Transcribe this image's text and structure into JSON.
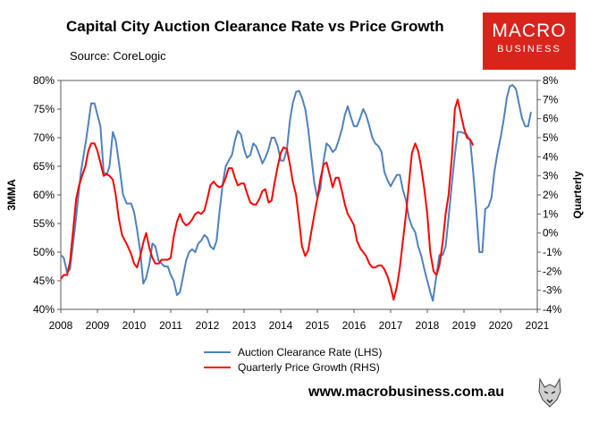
{
  "header": {
    "title": "Capital City Auction Clearance Rate vs Price Growth",
    "subtitle": "Source: CoreLogic"
  },
  "logo": {
    "line1": "MACRO",
    "line2": "BUSINESS"
  },
  "footer": {
    "url": "www.macrobusiness.com.au"
  },
  "colors": {
    "lhs": "#4f81bd",
    "rhs": "#ff0000",
    "logo_bg": "#d9241c"
  },
  "chart_data": {
    "type": "line",
    "title": "Capital City Auction Clearance Rate vs Price Growth",
    "subtitle": "Source: CoreLogic",
    "ylabel_left": "3MMA",
    "ylabel_right": "Quarterly",
    "xlim": [
      2008,
      2021
    ],
    "ylim_left": [
      40,
      80
    ],
    "ylim_right": [
      -4,
      8
    ],
    "grid": false,
    "legend_position": "bottom-center",
    "x_ticks": [
      2008,
      2009,
      2010,
      2011,
      2012,
      2013,
      2014,
      2015,
      2016,
      2017,
      2018,
      2019,
      2020,
      2021
    ],
    "x_tick_labels": [
      "2008",
      "2009",
      "2010",
      "2011",
      "2012",
      "2013",
      "2014",
      "2015",
      "2016",
      "2017",
      "2018",
      "2019",
      "2020",
      "2021"
    ],
    "y_left_ticks": [
      40,
      45,
      50,
      55,
      60,
      65,
      70,
      75,
      80
    ],
    "y_left_tick_labels": [
      "40%",
      "45%",
      "50%",
      "55%",
      "60%",
      "65%",
      "70%",
      "75%",
      "80%"
    ],
    "y_right_ticks": [
      -4,
      -3,
      -2,
      -1,
      0,
      1,
      2,
      3,
      4,
      5,
      6,
      7,
      8
    ],
    "y_right_tick_labels": [
      "-4%",
      "-3%",
      "-2%",
      "-1%",
      "0%",
      "1%",
      "2%",
      "3%",
      "4%",
      "5%",
      "6%",
      "7%",
      "8%"
    ],
    "series": [
      {
        "name": "Auction Clearance Rate (LHS)",
        "axis": "left",
        "color": "#4f81bd",
        "points": [
          [
            2008.0,
            49.5
          ],
          [
            2008.08,
            49
          ],
          [
            2008.17,
            46.5
          ],
          [
            2008.25,
            47
          ],
          [
            2008.4,
            55
          ],
          [
            2008.55,
            64
          ],
          [
            2008.7,
            70
          ],
          [
            2008.83,
            76
          ],
          [
            2008.92,
            76
          ],
          [
            2009.0,
            74
          ],
          [
            2009.08,
            72
          ],
          [
            2009.17,
            64
          ],
          [
            2009.25,
            63.5
          ],
          [
            2009.33,
            65
          ],
          [
            2009.42,
            71
          ],
          [
            2009.5,
            69.5
          ],
          [
            2009.6,
            65
          ],
          [
            2009.7,
            60
          ],
          [
            2009.8,
            58.5
          ],
          [
            2009.92,
            58.5
          ],
          [
            2010.0,
            57
          ],
          [
            2010.08,
            54
          ],
          [
            2010.17,
            50
          ],
          [
            2010.25,
            44.5
          ],
          [
            2010.33,
            45.5
          ],
          [
            2010.42,
            48
          ],
          [
            2010.5,
            51.5
          ],
          [
            2010.58,
            51
          ],
          [
            2010.67,
            48.5
          ],
          [
            2010.75,
            48
          ],
          [
            2010.83,
            47.5
          ],
          [
            2010.92,
            47.5
          ],
          [
            2011.0,
            46
          ],
          [
            2011.08,
            45
          ],
          [
            2011.17,
            42.5
          ],
          [
            2011.25,
            43
          ],
          [
            2011.33,
            45.5
          ],
          [
            2011.42,
            48.5
          ],
          [
            2011.5,
            50
          ],
          [
            2011.58,
            50.5
          ],
          [
            2011.67,
            50
          ],
          [
            2011.75,
            51.5
          ],
          [
            2011.83,
            52
          ],
          [
            2011.92,
            53
          ],
          [
            2012.0,
            52.5
          ],
          [
            2012.08,
            51
          ],
          [
            2012.17,
            50.5
          ],
          [
            2012.25,
            52
          ],
          [
            2012.33,
            57
          ],
          [
            2012.42,
            62
          ],
          [
            2012.5,
            65
          ],
          [
            2012.58,
            66
          ],
          [
            2012.67,
            67
          ],
          [
            2012.75,
            69.5
          ],
          [
            2012.83,
            71.2
          ],
          [
            2012.92,
            70.5
          ],
          [
            2013.0,
            68
          ],
          [
            2013.08,
            66.5
          ],
          [
            2013.17,
            67
          ],
          [
            2013.25,
            69
          ],
          [
            2013.33,
            68.5
          ],
          [
            2013.42,
            67
          ],
          [
            2013.5,
            65.5
          ],
          [
            2013.58,
            66.5
          ],
          [
            2013.67,
            68
          ],
          [
            2013.75,
            70
          ],
          [
            2013.83,
            70
          ],
          [
            2013.92,
            68.5
          ],
          [
            2014.0,
            66
          ],
          [
            2014.08,
            66
          ],
          [
            2014.17,
            68
          ],
          [
            2014.25,
            73
          ],
          [
            2014.33,
            76
          ],
          [
            2014.42,
            78
          ],
          [
            2014.5,
            78.2
          ],
          [
            2014.58,
            77
          ],
          [
            2014.67,
            75
          ],
          [
            2014.75,
            71.5
          ],
          [
            2014.83,
            67
          ],
          [
            2014.92,
            62
          ],
          [
            2015.0,
            59.5
          ],
          [
            2015.08,
            61
          ],
          [
            2015.17,
            66
          ],
          [
            2015.25,
            69
          ],
          [
            2015.33,
            68.5
          ],
          [
            2015.42,
            67.5
          ],
          [
            2015.5,
            68
          ],
          [
            2015.58,
            69.5
          ],
          [
            2015.67,
            71.5
          ],
          [
            2015.75,
            74
          ],
          [
            2015.83,
            75.5
          ],
          [
            2015.92,
            73.5
          ],
          [
            2016.0,
            72
          ],
          [
            2016.08,
            72
          ],
          [
            2016.17,
            73.5
          ],
          [
            2016.25,
            75
          ],
          [
            2016.33,
            74
          ],
          [
            2016.42,
            72
          ],
          [
            2016.5,
            70
          ],
          [
            2016.58,
            69
          ],
          [
            2016.67,
            68.5
          ],
          [
            2016.75,
            67.5
          ],
          [
            2016.83,
            64
          ],
          [
            2016.92,
            62.5
          ],
          [
            2017.0,
            61.5
          ],
          [
            2017.08,
            62.5
          ],
          [
            2017.17,
            63.5
          ],
          [
            2017.25,
            63.5
          ],
          [
            2017.33,
            61
          ],
          [
            2017.42,
            59
          ],
          [
            2017.5,
            56
          ],
          [
            2017.58,
            54.5
          ],
          [
            2017.67,
            53.5
          ],
          [
            2017.75,
            51
          ],
          [
            2017.83,
            49.5
          ],
          [
            2017.92,
            47
          ],
          [
            2018.0,
            45
          ],
          [
            2018.08,
            43
          ],
          [
            2018.15,
            41.5
          ],
          [
            2018.25,
            46
          ],
          [
            2018.33,
            49.5
          ],
          [
            2018.42,
            49.5
          ],
          [
            2018.5,
            51
          ],
          [
            2018.58,
            56
          ],
          [
            2018.67,
            62
          ],
          [
            2018.75,
            67
          ],
          [
            2018.83,
            71
          ],
          [
            2018.92,
            71
          ],
          [
            2019.0,
            70.8
          ],
          [
            2019.08,
            70.5
          ],
          [
            2019.17,
            69.5
          ],
          [
            2019.25,
            64
          ],
          [
            2019.33,
            58
          ],
          [
            2019.42,
            50
          ],
          [
            2019.5,
            50
          ],
          [
            2019.58,
            57.5
          ],
          [
            2019.67,
            58
          ],
          [
            2019.75,
            59.5
          ],
          [
            2019.83,
            64
          ],
          [
            2019.92,
            67.5
          ],
          [
            2020.0,
            70
          ],
          [
            2020.08,
            73
          ],
          [
            2020.17,
            77
          ],
          [
            2020.25,
            79
          ],
          [
            2020.33,
            79.2
          ],
          [
            2020.42,
            78.5
          ],
          [
            2020.5,
            76
          ],
          [
            2020.58,
            73.5
          ],
          [
            2020.67,
            72
          ],
          [
            2020.75,
            72
          ],
          [
            2020.83,
            74.5
          ]
        ]
      },
      {
        "name": "Quarterly Price Growth (RHS)",
        "axis": "right",
        "color": "#ff0000",
        "points": [
          [
            2008.0,
            -2.4
          ],
          [
            2008.08,
            -2.2
          ],
          [
            2008.17,
            -2.2
          ],
          [
            2008.25,
            -1.5
          ],
          [
            2008.33,
            0
          ],
          [
            2008.42,
            1.8
          ],
          [
            2008.5,
            2.5
          ],
          [
            2008.58,
            3
          ],
          [
            2008.67,
            3.5
          ],
          [
            2008.75,
            4.3
          ],
          [
            2008.83,
            4.7
          ],
          [
            2008.92,
            4.7
          ],
          [
            2009.0,
            4.3
          ],
          [
            2009.08,
            3.7
          ],
          [
            2009.17,
            3
          ],
          [
            2009.25,
            3.1
          ],
          [
            2009.33,
            3
          ],
          [
            2009.42,
            2.8
          ],
          [
            2009.5,
            2
          ],
          [
            2009.58,
            0.8
          ],
          [
            2009.67,
            -0.1
          ],
          [
            2009.75,
            -0.4
          ],
          [
            2009.83,
            -0.7
          ],
          [
            2009.92,
            -1.1
          ],
          [
            2010.0,
            -1.6
          ],
          [
            2010.08,
            -1.8
          ],
          [
            2010.17,
            -1.2
          ],
          [
            2010.25,
            -0.5
          ],
          [
            2010.33,
            0
          ],
          [
            2010.42,
            -0.8
          ],
          [
            2010.5,
            -1.3
          ],
          [
            2010.58,
            -1.6
          ],
          [
            2010.67,
            -1.6
          ],
          [
            2010.75,
            -1.4
          ],
          [
            2010.83,
            -1.4
          ],
          [
            2010.92,
            -1.4
          ],
          [
            2011.0,
            -1.3
          ],
          [
            2011.08,
            -0.2
          ],
          [
            2011.17,
            0.6
          ],
          [
            2011.25,
            1
          ],
          [
            2011.33,
            0.6
          ],
          [
            2011.42,
            0.4
          ],
          [
            2011.5,
            0.5
          ],
          [
            2011.58,
            0.7
          ],
          [
            2011.67,
            1
          ],
          [
            2011.75,
            1.1
          ],
          [
            2011.83,
            1
          ],
          [
            2011.92,
            1.2
          ],
          [
            2012.0,
            1.8
          ],
          [
            2012.08,
            2.5
          ],
          [
            2012.17,
            2.7
          ],
          [
            2012.25,
            2.5
          ],
          [
            2012.33,
            2.4
          ],
          [
            2012.42,
            2.5
          ],
          [
            2012.5,
            2.9
          ],
          [
            2012.58,
            3.4
          ],
          [
            2012.67,
            3.4
          ],
          [
            2012.75,
            2.9
          ],
          [
            2012.83,
            2.5
          ],
          [
            2012.92,
            2.6
          ],
          [
            2013.0,
            2.6
          ],
          [
            2013.08,
            2.1
          ],
          [
            2013.17,
            1.6
          ],
          [
            2013.25,
            1.5
          ],
          [
            2013.33,
            1.5
          ],
          [
            2013.42,
            1.8
          ],
          [
            2013.5,
            2.2
          ],
          [
            2013.58,
            2.3
          ],
          [
            2013.67,
            1.6
          ],
          [
            2013.75,
            1.7
          ],
          [
            2013.83,
            2.6
          ],
          [
            2013.92,
            3.5
          ],
          [
            2014.0,
            4.2
          ],
          [
            2014.08,
            4.5
          ],
          [
            2014.17,
            4.4
          ],
          [
            2014.25,
            3.6
          ],
          [
            2014.33,
            2.7
          ],
          [
            2014.42,
            2
          ],
          [
            2014.5,
            0.7
          ],
          [
            2014.58,
            -0.7
          ],
          [
            2014.67,
            -1.2
          ],
          [
            2014.75,
            -0.9
          ],
          [
            2014.83,
            0
          ],
          [
            2014.92,
            1
          ],
          [
            2015.0,
            1.8
          ],
          [
            2015.08,
            2.8
          ],
          [
            2015.17,
            3.6
          ],
          [
            2015.25,
            3.7
          ],
          [
            2015.33,
            3.1
          ],
          [
            2015.42,
            2.4
          ],
          [
            2015.5,
            2.9
          ],
          [
            2015.58,
            2.9
          ],
          [
            2015.67,
            2.2
          ],
          [
            2015.75,
            1.5
          ],
          [
            2015.83,
            1
          ],
          [
            2015.92,
            0.7
          ],
          [
            2016.0,
            0.4
          ],
          [
            2016.08,
            -0.4
          ],
          [
            2016.17,
            -0.8
          ],
          [
            2016.25,
            -1
          ],
          [
            2016.33,
            -1.2
          ],
          [
            2016.42,
            -1.6
          ],
          [
            2016.5,
            -1.8
          ],
          [
            2016.58,
            -1.8
          ],
          [
            2016.67,
            -1.7
          ],
          [
            2016.75,
            -1.7
          ],
          [
            2016.83,
            -1.9
          ],
          [
            2016.92,
            -2.3
          ],
          [
            2017.0,
            -2.8
          ],
          [
            2017.08,
            -3.5
          ],
          [
            2017.17,
            -2.8
          ],
          [
            2017.25,
            -1.8
          ],
          [
            2017.33,
            -0.5
          ],
          [
            2017.42,
            1
          ],
          [
            2017.5,
            2.6
          ],
          [
            2017.58,
            4.2
          ],
          [
            2017.67,
            4.7
          ],
          [
            2017.75,
            4.3
          ],
          [
            2017.83,
            3.5
          ],
          [
            2017.92,
            2.3
          ],
          [
            2018.0,
            1
          ],
          [
            2018.08,
            -1
          ],
          [
            2018.17,
            -2
          ],
          [
            2018.25,
            -2.2
          ],
          [
            2018.33,
            -1.7
          ],
          [
            2018.42,
            -0.5
          ],
          [
            2018.5,
            1
          ],
          [
            2018.58,
            2
          ],
          [
            2018.67,
            4
          ],
          [
            2018.75,
            6.5
          ],
          [
            2018.83,
            7
          ],
          [
            2018.92,
            6.2
          ],
          [
            2019.0,
            5.5
          ],
          [
            2019.08,
            5
          ],
          [
            2019.17,
            4.9
          ],
          [
            2019.25,
            4.6
          ]
        ]
      }
    ]
  }
}
